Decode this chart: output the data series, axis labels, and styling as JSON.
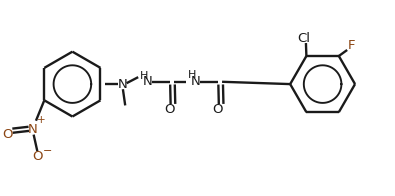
{
  "bg_color": "#ffffff",
  "bond_color": "#1a1a1a",
  "nitro_color": "#8B4513",
  "fluoro_color": "#8B4513",
  "lw": 1.7,
  "figsize": [
    3.95,
    1.96
  ],
  "dpi": 100,
  "xlim": [
    0.0,
    1.0
  ],
  "ylim": [
    0.0,
    1.0
  ]
}
